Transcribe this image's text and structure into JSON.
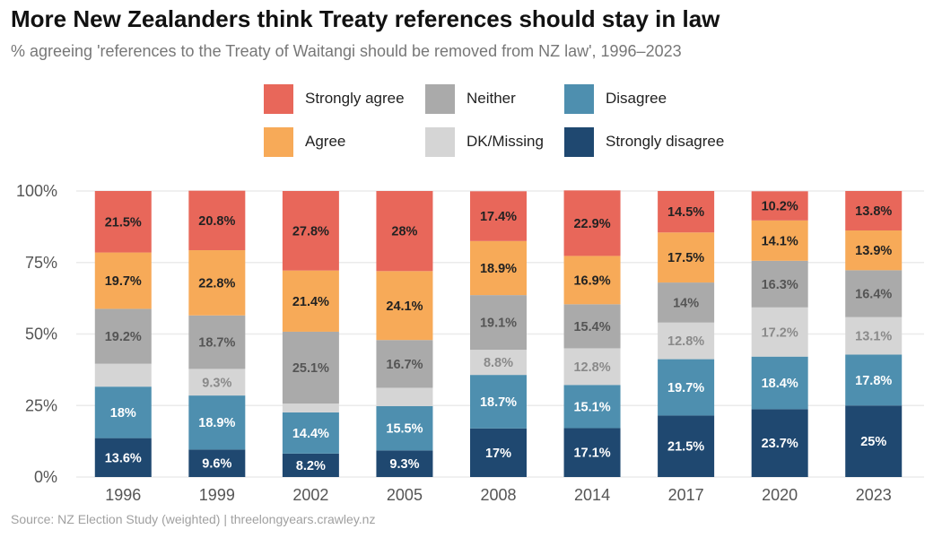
{
  "chart_data": {
    "type": "bar",
    "stacked": true,
    "title": "More New Zealanders think Treaty references should stay in law",
    "subtitle": "% agreeing 'references to the Treaty of Waitangi should be removed from NZ law', 1996–2023",
    "source": "Source: NZ Election Study (weighted) | threelongyears.crawley.nz",
    "xlabel": "",
    "ylabel": "",
    "ylim": [
      0,
      100
    ],
    "yticks": [
      0,
      25,
      50,
      75,
      100
    ],
    "ytick_labels": [
      "0%",
      "25%",
      "50%",
      "75%",
      "100%"
    ],
    "grid": "horizontal",
    "legend_placement": "top",
    "categories": [
      "1996",
      "1999",
      "2002",
      "2005",
      "2008",
      "2014",
      "2017",
      "2020",
      "2023"
    ],
    "series": [
      {
        "name": "Strongly disagree",
        "color": "#1F4870",
        "label_color": "#ffffff",
        "values": [
          13.6,
          9.6,
          8.2,
          9.3,
          17,
          17.1,
          21.5,
          23.7,
          25
        ],
        "labels": [
          "13.6%",
          "9.6%",
          "8.2%",
          "9.3%",
          "17%",
          "17.1%",
          "21.5%",
          "23.7%",
          "25%"
        ]
      },
      {
        "name": "Disagree",
        "color": "#4E8FAF",
        "label_color": "#ffffff",
        "values": [
          18,
          18.9,
          14.4,
          15.5,
          18.7,
          15.1,
          19.7,
          18.4,
          17.8
        ],
        "labels": [
          "18%",
          "18.9%",
          "14.4%",
          "15.5%",
          "18.7%",
          "15.1%",
          "19.7%",
          "18.4%",
          "17.8%"
        ]
      },
      {
        "name": "DK/Missing",
        "color": "#D5D5D5",
        "label_color": "#8a8a8a",
        "values": [
          8.0,
          9.3,
          3.1,
          6.4,
          8.8,
          12.8,
          12.8,
          17.2,
          13.1
        ],
        "labels": [
          "",
          "9.3%",
          "",
          "",
          "8.8%",
          "12.8%",
          "12.8%",
          "17.2%",
          "13.1%"
        ]
      },
      {
        "name": "Neither",
        "color": "#AAAAAA",
        "label_color": "#555555",
        "values": [
          19.2,
          18.7,
          25.1,
          16.7,
          19.1,
          15.4,
          14,
          16.3,
          16.4
        ],
        "labels": [
          "19.2%",
          "18.7%",
          "25.1%",
          "16.7%",
          "19.1%",
          "15.4%",
          "14%",
          "16.3%",
          "16.4%"
        ]
      },
      {
        "name": "Agree",
        "color": "#F7AA58",
        "label_color": "#222222",
        "values": [
          19.7,
          22.8,
          21.4,
          24.1,
          18.9,
          16.9,
          17.5,
          14.1,
          13.9
        ],
        "labels": [
          "19.7%",
          "22.8%",
          "21.4%",
          "24.1%",
          "18.9%",
          "16.9%",
          "17.5%",
          "14.1%",
          "13.9%"
        ]
      },
      {
        "name": "Strongly agree",
        "color": "#E8675A",
        "label_color": "#222222",
        "values": [
          21.5,
          20.8,
          27.8,
          28,
          17.4,
          22.9,
          14.5,
          10.2,
          13.8
        ],
        "labels": [
          "21.5%",
          "20.8%",
          "27.8%",
          "28%",
          "17.4%",
          "22.9%",
          "14.5%",
          "10.2%",
          "13.8%"
        ]
      }
    ],
    "legend_order": [
      "Strongly agree",
      "Neither",
      "Disagree",
      "Agree",
      "DK/Missing",
      "Strongly disagree"
    ]
  }
}
